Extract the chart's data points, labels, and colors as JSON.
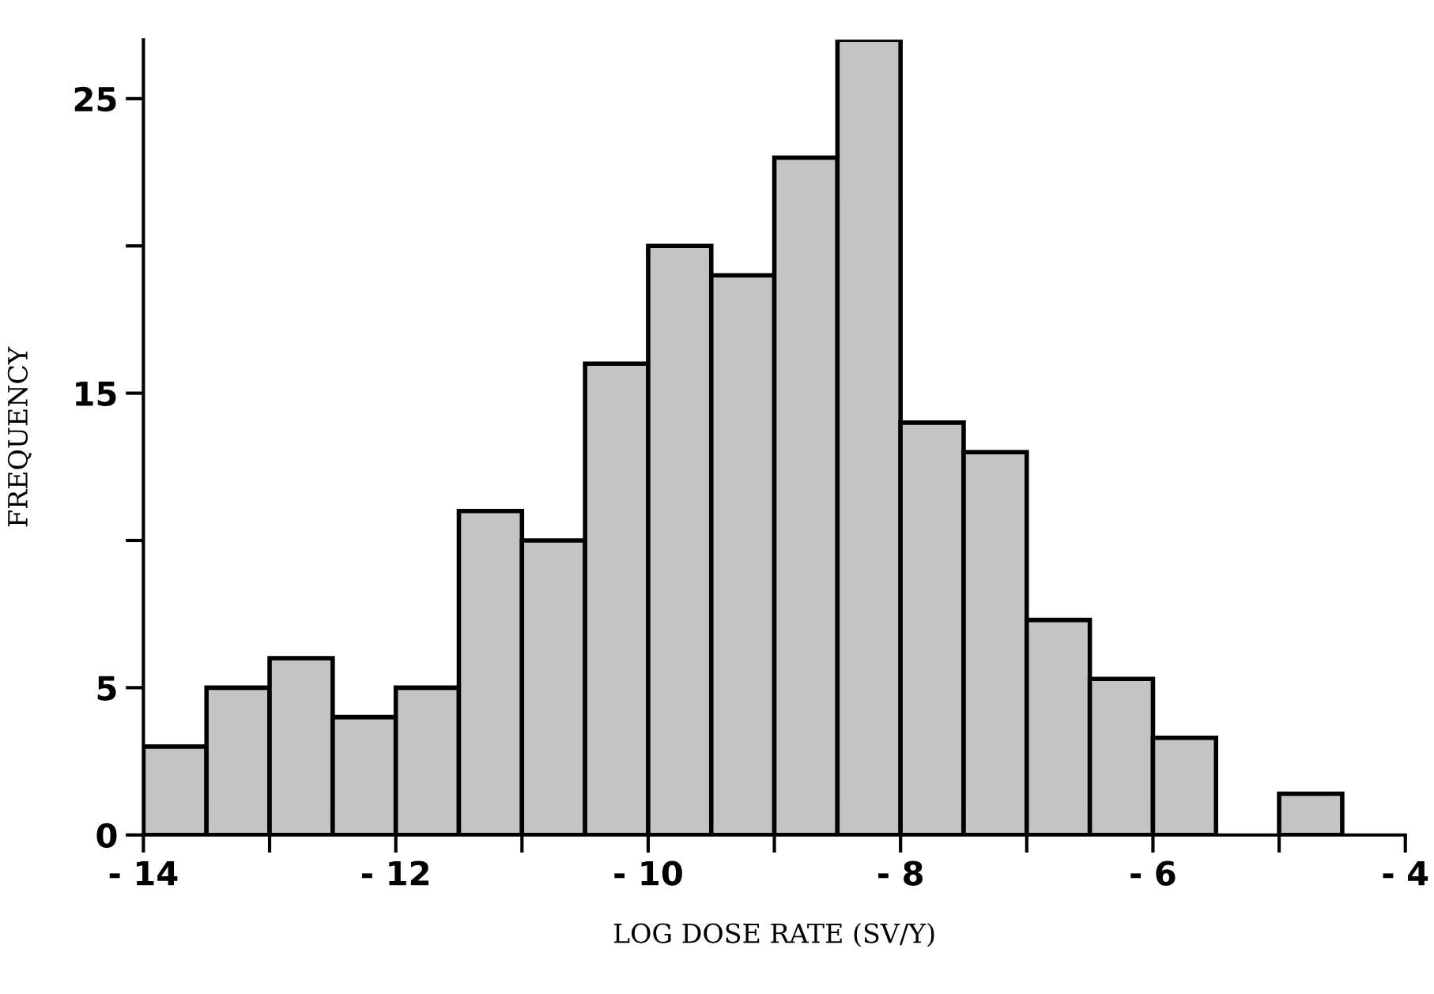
{
  "chart_data": {
    "type": "histogram",
    "xlabel": "LOG DOSE RATE (SV/Y)",
    "ylabel": "FREQUENCY",
    "bins": [
      -14,
      -13.5,
      -13,
      -12.5,
      -12,
      -11.5,
      -11,
      -10.5,
      -10,
      -9.5,
      -9,
      -8.5,
      -8,
      -7.5,
      -7,
      -6.5,
      -6,
      -5.5,
      -5,
      -4.5
    ],
    "values": [
      3,
      5,
      6,
      4,
      5,
      11,
      10,
      16,
      20,
      19,
      23,
      27,
      14,
      13,
      7.3,
      5.3,
      3.3,
      0,
      1.4
    ],
    "color": "#c4c4c4",
    "xlim": [
      -14,
      -4
    ],
    "xticks": [
      {
        "value": -14,
        "label": "- 14"
      },
      {
        "value": -13,
        "label": null
      },
      {
        "value": -12,
        "label": "- 12"
      },
      {
        "value": -11,
        "label": null
      },
      {
        "value": -10,
        "label": "- 10"
      },
      {
        "value": -9,
        "label": null
      },
      {
        "value": -8,
        "label": "- 8"
      },
      {
        "value": -7,
        "label": null
      },
      {
        "value": -6,
        "label": "- 6"
      },
      {
        "value": -5,
        "label": null
      },
      {
        "value": -4,
        "label": "- 4"
      }
    ],
    "ylim": [
      0,
      27
    ],
    "yticks": [
      0,
      5,
      {
        "value": 10,
        "label": null
      },
      15,
      {
        "value": 20,
        "label": null
      },
      25
    ],
    "grid": false
  }
}
